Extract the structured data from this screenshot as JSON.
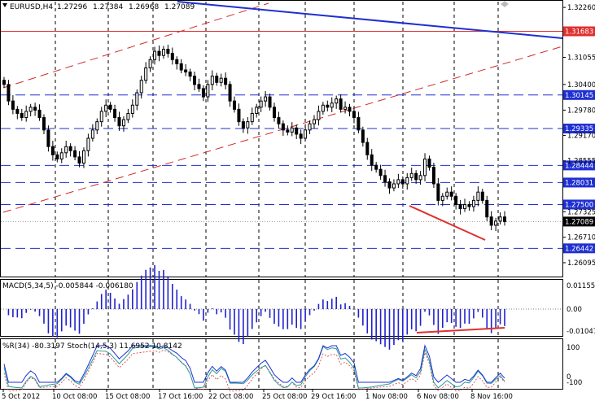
{
  "header": {
    "symbol": "EURUSD,H4",
    "open": "1.27296",
    "high": "1.27384",
    "low": "1.26968",
    "close": "1.27089"
  },
  "price_axis": {
    "ticks": [
      "1.32260",
      "1.31055",
      "1.30400",
      "1.29780",
      "1.29170",
      "1.28555",
      "1.27325",
      "1.26710",
      "1.26095"
    ],
    "levels": [
      {
        "label": "1.31683",
        "color": "#e03030"
      },
      {
        "label": "1.30145",
        "color": "#1f2fd1"
      },
      {
        "label": "1.29335",
        "color": "#1f2fd1"
      },
      {
        "label": "1.28444",
        "color": "#1f2fd1"
      },
      {
        "label": "1.28031",
        "color": "#1f2fd1"
      },
      {
        "label": "1.27500",
        "color": "#1f2fd1"
      },
      {
        "label": "1.26442",
        "color": "#1f2fd1"
      }
    ],
    "current": "1.27089"
  },
  "macd": {
    "label": "MACD(5,34,5) -0.005844 -0.006180",
    "ticks": [
      "0.01155",
      "0.00",
      "-0.01047"
    ]
  },
  "stoch": {
    "label": "%R(34) -80.3197  Stoch(14,5,3) 11.6952 10.8142",
    "ticks": [
      "100",
      "0",
      "-100"
    ]
  },
  "time_axis": [
    "5 Oct 2012",
    "10 Oct 08:00",
    "15 Oct 08:00",
    "17 Oct 16:00",
    "22 Oct 08:00",
    "25 Oct 08:00",
    "29 Oct 16:00",
    "1 Nov 08:00",
    "6 Nov 08:00",
    "8 Nov 16:00"
  ],
  "colors": {
    "candle": "#000000",
    "blue_trend": "#1f2fd1",
    "red_level": "#e03030",
    "red_channel": "#d42a2a",
    "macd_hist": "#2020d0",
    "signal": "#e03030",
    "stoch_main": "#2a9d9d",
    "willr": "#1f2fd1"
  },
  "chart_data": {
    "type": "candlestick",
    "title": "EURUSD,H4",
    "ylim": [
      1.258,
      1.324
    ],
    "candles_close": [
      1.304,
      1.3,
      1.298,
      1.297,
      1.296,
      1.2975,
      1.2985,
      1.2978,
      1.296,
      1.293,
      1.289,
      1.287,
      1.286,
      1.2875,
      1.289,
      1.288,
      1.2865,
      1.285,
      1.288,
      1.291,
      1.293,
      1.295,
      1.2975,
      1.299,
      1.298,
      1.296,
      1.294,
      1.2955,
      1.297,
      1.299,
      1.302,
      1.305,
      1.308,
      1.31,
      1.312,
      1.311,
      1.3125,
      1.3115,
      1.31,
      1.309,
      1.3075,
      1.307,
      1.306,
      1.304,
      1.303,
      1.301,
      1.304,
      1.306,
      1.3045,
      1.3055,
      1.304,
      1.3,
      1.298,
      1.295,
      1.2935,
      1.295,
      1.297,
      1.2985,
      1.3,
      1.301,
      1.2985,
      1.296,
      1.2945,
      1.293,
      1.2925,
      1.2935,
      1.292,
      1.291,
      1.293,
      1.2945,
      1.2955,
      1.2975,
      1.299,
      1.2985,
      1.2995,
      1.3005,
      1.298,
      1.2985,
      1.2975,
      1.296,
      1.293,
      1.29,
      1.287,
      1.2845,
      1.2835,
      1.282,
      1.2805,
      1.279,
      1.28,
      1.281,
      1.28,
      1.2815,
      1.2825,
      1.281,
      1.282,
      1.286,
      1.284,
      1.28,
      1.276,
      1.277,
      1.278,
      1.277,
      1.275,
      1.274,
      1.275,
      1.2745,
      1.276,
      1.278,
      1.276,
      1.272,
      1.27,
      1.271,
      1.272,
      1.2709
    ]
  }
}
